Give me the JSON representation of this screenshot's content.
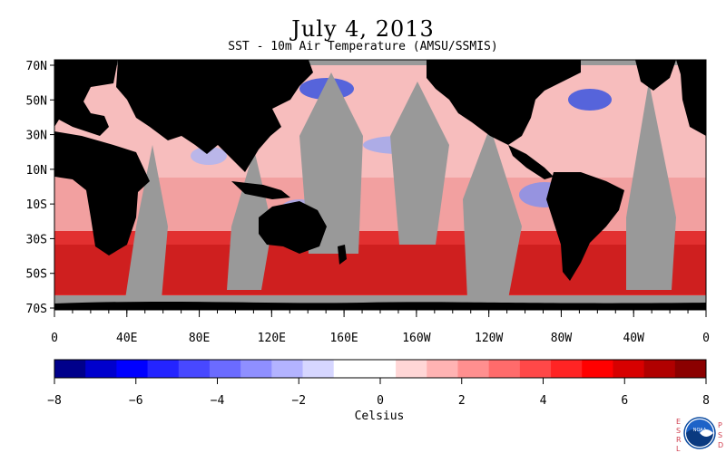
{
  "figure": {
    "title": "July 4, 2013",
    "subtitle": "SST - 10m Air Temperature (AMSU/SSMIS)"
  },
  "map": {
    "lat_labels": [
      "70N",
      "50N",
      "30N",
      "10N",
      "10S",
      "30S",
      "50S",
      "70S"
    ],
    "lon_labels": [
      "0",
      "40E",
      "80E",
      "120E",
      "160E",
      "160W",
      "120W",
      "80W",
      "40W",
      "0"
    ],
    "colors": {
      "land": "#000000",
      "nodata": "#999999"
    }
  },
  "colorbar": {
    "label": "Celsius",
    "ticks": [
      "−8",
      "−6",
      "−4",
      "−2",
      "0",
      "2",
      "4",
      "6",
      "8"
    ],
    "colors": [
      "#00008b",
      "#0000cd",
      "#0000ff",
      "#2424ff",
      "#4848ff",
      "#6b6bff",
      "#8f8fff",
      "#b3b3ff",
      "#d6d6ff",
      "#ffffff",
      "#ffffff",
      "#ffd6d6",
      "#ffb3b3",
      "#ff8f8f",
      "#ff6b6b",
      "#ff4848",
      "#ff2424",
      "#ff0000",
      "#d70000",
      "#b00000",
      "#8b0000"
    ]
  },
  "logo": {
    "text": "NOAA",
    "left_letters": "ESRL",
    "right_letters": "PSD"
  }
}
